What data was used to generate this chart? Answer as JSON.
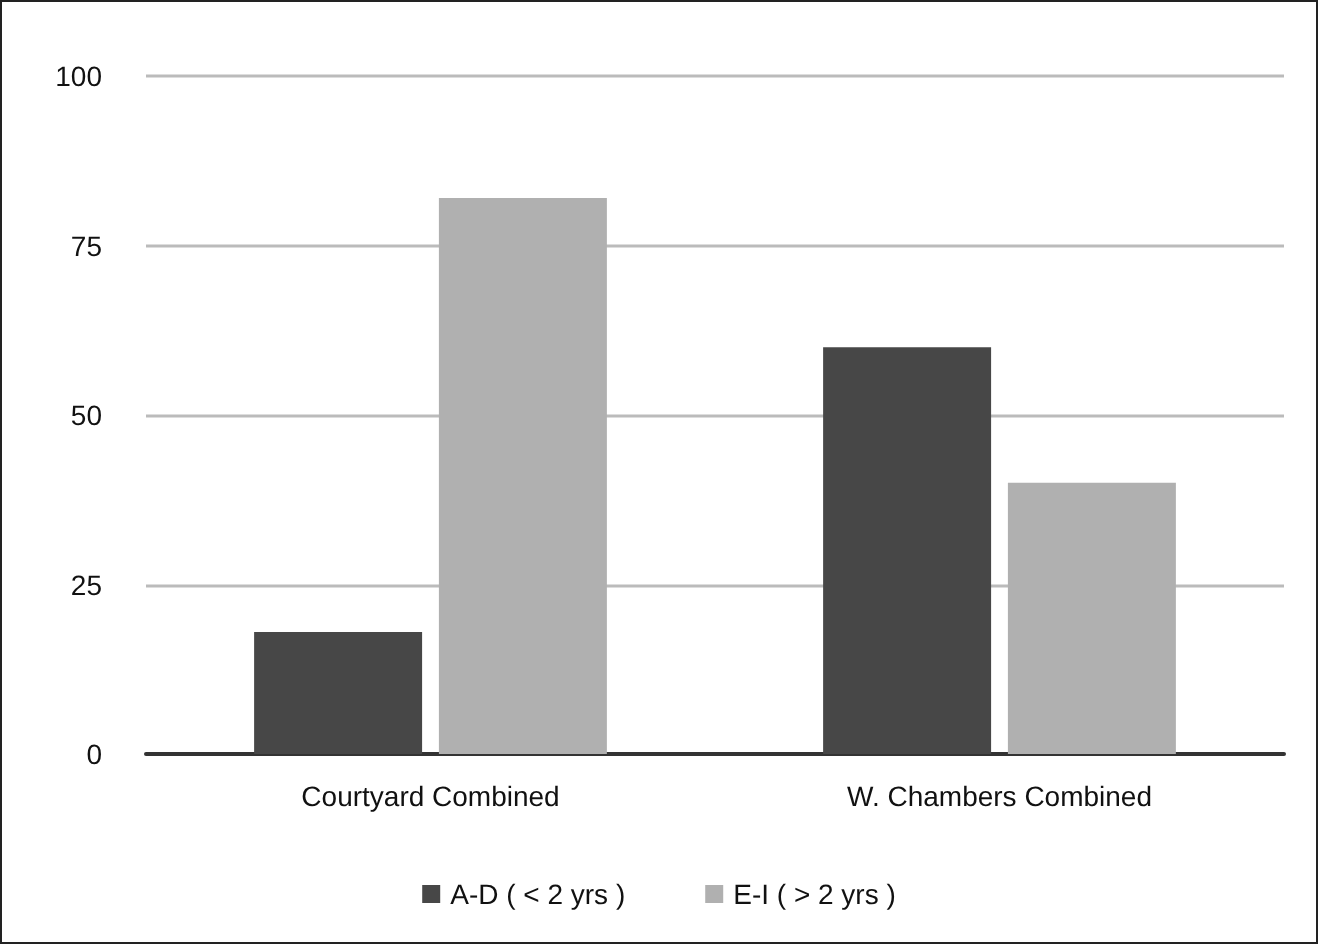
{
  "chart_data": {
    "type": "bar",
    "categories": [
      "Courtyard Combined",
      "W. Chambers Combined"
    ],
    "series": [
      {
        "name": "A-D ( < 2 yrs )",
        "color": "#474747",
        "values": [
          18,
          60
        ]
      },
      {
        "name": "E-I ( > 2 yrs )",
        "color": "#b0b0b0",
        "values": [
          82,
          40
        ]
      }
    ],
    "ylim": [
      0,
      100
    ],
    "yticks": [
      0,
      25,
      50,
      75,
      100
    ],
    "grid": "y",
    "legend": "bottom"
  }
}
